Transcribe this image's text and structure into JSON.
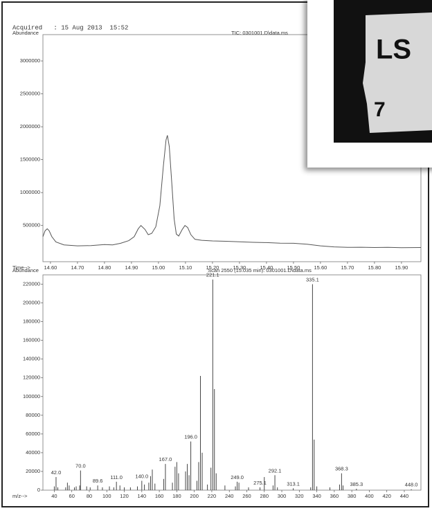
{
  "header": {
    "acquired": "Acquired   : 15 Aug 2013  15:52"
  },
  "inset": {
    "texts": [
      "LS",
      "7"
    ]
  },
  "chart_data": [
    {
      "type": "line",
      "title": "TIC: 0301001.D\\data.ms",
      "y_label": "Abundance",
      "x_label": "Time-->",
      "x": [
        14.572,
        14.58,
        14.588,
        14.595,
        14.605,
        14.62,
        14.65,
        14.7,
        14.75,
        14.8,
        14.83,
        14.86,
        14.89,
        14.91,
        14.925,
        14.935,
        14.95,
        14.962,
        14.975,
        14.99,
        15.005,
        15.018,
        15.028,
        15.033,
        15.04,
        15.05,
        15.058,
        15.066,
        15.075,
        15.088,
        15.098,
        15.108,
        15.12,
        15.135,
        15.16,
        15.2,
        15.25,
        15.3,
        15.35,
        15.4,
        15.45,
        15.5,
        15.55,
        15.6,
        15.65,
        15.7,
        15.75,
        15.8,
        15.85,
        15.9,
        15.972
      ],
      "series": [
        {
          "color": "#555555",
          "values": [
            330000,
            420000,
            450000,
            420000,
            330000,
            250000,
            205000,
            190000,
            195000,
            210000,
            205000,
            230000,
            270000,
            330000,
            450000,
            500000,
            440000,
            360000,
            380000,
            480000,
            800000,
            1400000,
            1800000,
            1870000,
            1700000,
            1100000,
            600000,
            370000,
            340000,
            440000,
            500000,
            470000,
            360000,
            290000,
            275000,
            265000,
            260000,
            252000,
            245000,
            240000,
            232000,
            230000,
            215000,
            190000,
            175000,
            168000,
            170000,
            165000,
            168000,
            163000,
            165000
          ]
        }
      ],
      "xlim": [
        14.572,
        15.972
      ],
      "xticks": [
        {
          "value": 14.6,
          "label": "14.60"
        },
        {
          "value": 14.7,
          "label": "14.70"
        },
        {
          "value": 14.8,
          "label": "14.80"
        },
        {
          "value": 14.9,
          "label": "14.90"
        },
        {
          "value": 15.0,
          "label": "15.00"
        },
        {
          "value": 15.1,
          "label": "15.10"
        },
        {
          "value": 15.2,
          "label": "15.20"
        },
        {
          "value": 15.3,
          "label": "15.30"
        },
        {
          "value": 15.4,
          "label": "15.40"
        },
        {
          "value": 15.5,
          "label": "15.50"
        },
        {
          "value": 15.6,
          "label": "15.60"
        },
        {
          "value": 15.7,
          "label": "15.70"
        },
        {
          "value": 15.8,
          "label": "15.80"
        },
        {
          "value": 15.9,
          "label": "15.90"
        }
      ],
      "ylim": [
        -50000,
        3400000
      ],
      "yticks": [
        500000,
        1000000,
        1500000,
        2000000,
        2500000,
        3000000
      ]
    },
    {
      "type": "stem",
      "title": "Scan 2550 (15.035 min): 0301001.D\\data.ms",
      "y_label": "Abundance",
      "x_label": "m/z-->",
      "x": [
        40,
        42.0,
        44,
        53,
        55,
        57,
        63,
        65,
        69,
        70.0,
        77,
        81,
        89.6,
        95,
        103,
        108,
        111.0,
        115,
        120,
        127,
        135,
        140.0,
        143,
        148,
        150,
        152,
        155,
        165,
        167.0,
        175,
        178,
        180,
        182,
        190,
        192,
        194,
        196.0,
        203,
        205,
        207,
        209,
        215,
        219,
        221.1,
        223,
        225,
        235,
        247,
        249.0,
        251,
        262,
        275.1,
        280,
        290,
        292.1,
        295,
        313.1,
        333,
        335.1,
        337,
        340,
        355,
        366,
        368.3,
        370,
        385.3,
        448.0
      ],
      "x_labels": [
        null,
        "42.0",
        null,
        null,
        null,
        null,
        null,
        null,
        null,
        "70.0",
        null,
        null,
        "89.6",
        null,
        null,
        null,
        "111.0",
        null,
        null,
        null,
        null,
        "140.0",
        null,
        null,
        null,
        null,
        null,
        null,
        "167.0",
        null,
        null,
        null,
        null,
        null,
        null,
        null,
        "196.0",
        null,
        null,
        null,
        null,
        null,
        null,
        "221.1",
        null,
        null,
        null,
        null,
        "249.0",
        null,
        null,
        "275.1",
        null,
        null,
        "292.1",
        null,
        "313.1",
        null,
        "335.1",
        null,
        null,
        null,
        null,
        "368.3",
        null,
        "385.3",
        "448.0"
      ],
      "series": [
        {
          "color": "#444444",
          "values": [
            4000,
            14000,
            3000,
            3000,
            8000,
            5000,
            3000,
            4000,
            5000,
            21000,
            4000,
            3000,
            5000,
            3000,
            4000,
            3000,
            9000,
            5000,
            3000,
            3000,
            4000,
            10000,
            6000,
            8000,
            15000,
            22000,
            7000,
            12000,
            28000,
            8000,
            25000,
            30000,
            18000,
            20000,
            28000,
            16000,
            52000,
            10000,
            30000,
            122000,
            40000,
            6000,
            24000,
            225000,
            108000,
            18000,
            5000,
            4000,
            9000,
            8000,
            3000,
            3000,
            14000,
            5000,
            16000,
            3000,
            2000,
            3000,
            220000,
            54000,
            4000,
            3000,
            6000,
            18000,
            5000,
            1500,
            1000
          ]
        }
      ],
      "xlim": [
        27,
        459
      ],
      "xticks": [
        40,
        60,
        80,
        100,
        120,
        140,
        160,
        180,
        200,
        220,
        240,
        260,
        280,
        300,
        320,
        340,
        360,
        380,
        400,
        420,
        440
      ],
      "ylim": [
        0,
        230000
      ],
      "yticks": [
        0,
        20000,
        40000,
        60000,
        80000,
        100000,
        120000,
        140000,
        160000,
        180000,
        200000,
        220000
      ]
    }
  ]
}
